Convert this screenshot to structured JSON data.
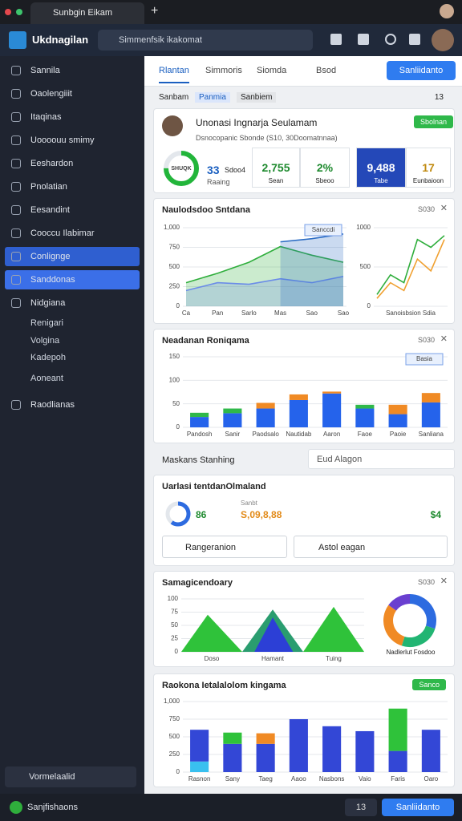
{
  "browser": {
    "tab_title": "Sunbgin Eikam"
  },
  "header": {
    "app_name": "Ukdnagilan",
    "search_placeholder": "Simmenfsik ikakomat"
  },
  "sidebar": {
    "items": [
      "Sannila",
      "Oaolengiiit",
      "Itaqinas",
      "Uoooouu smimy",
      "Eeshardon",
      "Pnolatian",
      "Eesandint",
      "Cooccu Ilabimar",
      "Conlignge",
      "Sanddonas",
      "Nidgiana"
    ],
    "subitems": [
      "Renigari",
      "Volgina",
      "Kadepoh",
      "Aoneant"
    ],
    "last_item": "Raodlianas",
    "workspace": "Vormelaalid",
    "footer": "Sanjfishaons"
  },
  "tabs": [
    "Rlantan",
    "Simmoris",
    "Siomda",
    "Bsod"
  ],
  "primary_action": "Sanliidanto",
  "breadcrumb": [
    "Sanbam",
    "Panmia",
    "Sanbiem"
  ],
  "page_count": "13",
  "profile": {
    "name": "Unonasi Ingnarja Seulamam",
    "subtitle": "Dsnocopanic Sbonde (S10, 30Doomatnnaa)",
    "button": "Sbolnan",
    "progress": 75,
    "progress_label": "SHUQK",
    "stat": {
      "value": "33",
      "unit": "Sdoo4",
      "label": "Raaing"
    },
    "metrics": [
      {
        "value": "2,755",
        "label": "Sean"
      },
      {
        "value": "2%",
        "label": "Sbeoo"
      },
      {
        "value": "9,488",
        "label": "Tabe"
      },
      {
        "value": "17",
        "label": "Eunbaioon"
      }
    ]
  },
  "filter": {
    "label": "Maskans Stanhing",
    "search": "Eud Alagon"
  },
  "summary": {
    "title": "Uarlasi tentdanOlmaland",
    "progress": 60,
    "count": "86",
    "amount_caption": "Sanbt",
    "amount": "S,09,8,88",
    "extra": "$4",
    "selects": [
      "Rangeranion",
      "Astol eagan"
    ]
  },
  "charts": [
    {
      "type": "area",
      "title": "Naulodsdoo Sntdana",
      "note": "S030",
      "annotation": "Sanccdi",
      "categories": [
        "Ca",
        "Pan",
        "Sarlo",
        "Mas",
        "Sao",
        "Sao"
      ],
      "ylim": [
        0,
        1000
      ],
      "yticks": [
        0,
        250,
        500,
        750,
        {
          "value": 1000,
          "label": "1,000"
        }
      ],
      "series": [
        {
          "color": "#2fae3c",
          "values": [
            300,
            420,
            560,
            760,
            650,
            560
          ]
        },
        {
          "color": "#6b8ce8",
          "values": [
            200,
            300,
            280,
            350,
            300,
            380
          ]
        },
        {
          "color": "#2b6cc4",
          "values": [
            null,
            null,
            null,
            820,
            860,
            920
          ]
        }
      ]
    },
    {
      "type": "line",
      "x_label": "Sanoisbsion Sdia",
      "ylim": [
        0,
        1000
      ],
      "yticks": [
        0,
        500,
        1000
      ],
      "series": [
        {
          "color": "#2fae3c",
          "values": [
            150,
            400,
            300,
            850,
            750,
            900
          ]
        },
        {
          "color": "#f0a030",
          "values": [
            100,
            300,
            200,
            600,
            450,
            850
          ]
        }
      ]
    },
    {
      "type": "bar",
      "title": "Neadanan Roniqama",
      "note": "S030",
      "annotation": "Basia",
      "categories": [
        "Pandosh",
        "Sanir",
        "Paodsalo",
        "Nautidab",
        "Aaron",
        "Faoe",
        "Paoie",
        "Sanliana"
      ],
      "ylim": [
        0,
        150
      ],
      "yticks": [
        0,
        50,
        100,
        150
      ],
      "series": [
        {
          "color": "#2563eb",
          "values": [
            22,
            30,
            40,
            58,
            72,
            40,
            28,
            53
          ]
        },
        {
          "color": "#2fb84a",
          "values": [
            9,
            10,
            0,
            0,
            0,
            8,
            0,
            0
          ]
        },
        {
          "color": "#f08a24",
          "values": [
            0,
            0,
            12,
            12,
            4,
            0,
            20,
            20
          ]
        }
      ]
    },
    {
      "type": "mountain",
      "title": "Samagicendoary",
      "note": "S030",
      "categories": [
        "Doso",
        "Hamant",
        "Tuing"
      ],
      "xlim": [
        0,
        9
      ],
      "ylim": [
        0,
        100
      ],
      "yticks": [
        0,
        25,
        50,
        75,
        100
      ],
      "series": [
        {
          "color": "#2fc23a",
          "x": [
            0,
            1.3,
            3
          ],
          "values": [
            0,
            70,
            0
          ]
        },
        {
          "color": "#2a9d6f",
          "x": [
            3,
            4.5,
            6
          ],
          "values": [
            0,
            80,
            0
          ]
        },
        {
          "color": "#2c3fd6",
          "x": [
            3.6,
            4.5,
            5.5
          ],
          "values": [
            0,
            65,
            0
          ]
        },
        {
          "color": "#2fc23a",
          "x": [
            6,
            7.5,
            9
          ],
          "values": [
            0,
            85,
            0
          ]
        }
      ]
    },
    {
      "type": "pie",
      "caption": "Nadlerlut Fosdoo",
      "values": [
        30,
        25,
        30,
        15
      ],
      "colors": [
        "#2d6be0",
        "#22b573",
        "#f08a24",
        "#6a3fd0"
      ]
    },
    {
      "type": "bar",
      "title": "Raokona Ietalalolom kingama",
      "badge": "Sanco",
      "categories": [
        "Rasnon",
        "Sany",
        "Taeg",
        "Aaoo",
        "Nasbons",
        "Vaio",
        "Faris",
        "Oaro"
      ],
      "ylim": [
        0,
        1000
      ],
      "yticks": [
        0,
        250,
        500,
        750,
        {
          "value": 1000,
          "label": "1,000"
        }
      ],
      "series": [
        {
          "color": "#39c0ef",
          "values": [
            150,
            0,
            0,
            0,
            0,
            0,
            0,
            0
          ]
        },
        {
          "color": "#3347d6",
          "values": [
            450,
            400,
            400,
            750,
            650,
            580,
            300,
            600
          ]
        },
        {
          "color": "#2fc23a",
          "values": [
            0,
            160,
            0,
            0,
            0,
            0,
            600,
            0
          ]
        },
        {
          "color": "#f08a24",
          "values": [
            0,
            0,
            150,
            0,
            0,
            0,
            0,
            0
          ]
        }
      ]
    }
  ]
}
